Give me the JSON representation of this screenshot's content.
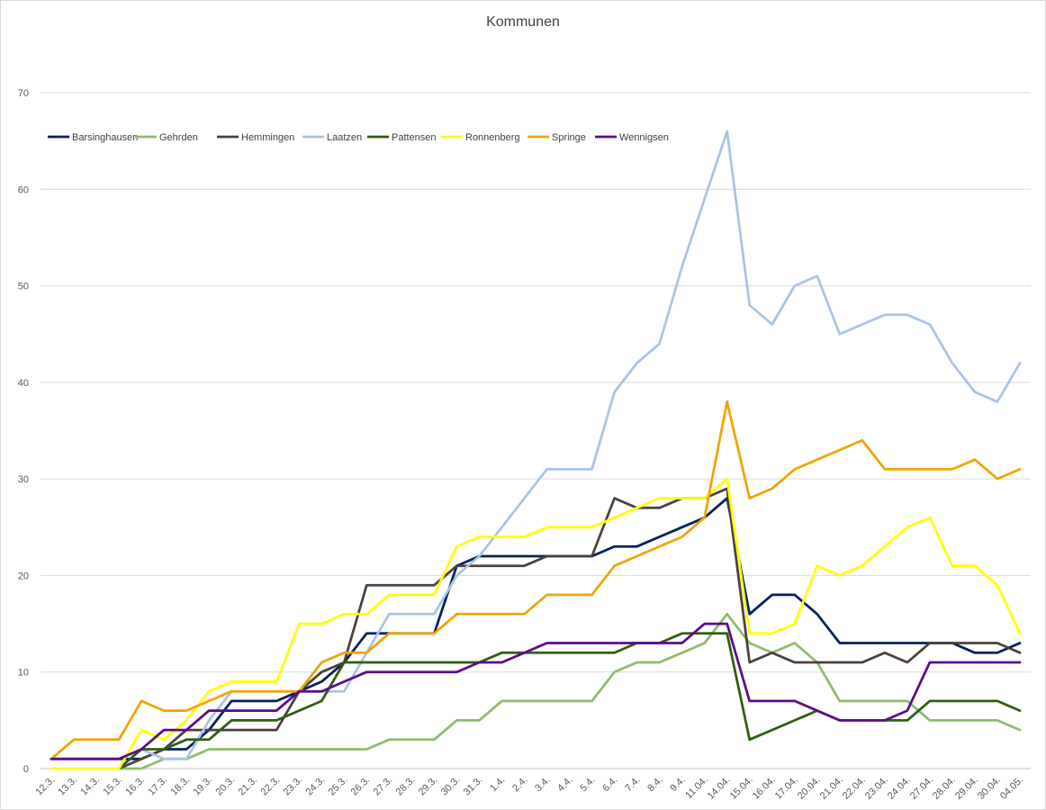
{
  "chart_data": {
    "type": "line",
    "title": "Kommunen",
    "xlabel": "",
    "ylabel": "",
    "ylim": [
      0,
      70
    ],
    "yticks": [
      0,
      10,
      20,
      30,
      40,
      50,
      60,
      70
    ],
    "grid": true,
    "legend_position": "top-left",
    "categories": [
      "12.3.",
      "13.3.",
      "14.3.",
      "15.3.",
      "16.3.",
      "17.3.",
      "18.3.",
      "19.3.",
      "20.3.",
      "21.3.",
      "22.3.",
      "23.3.",
      "24.3.",
      "25.3.",
      "26.3.",
      "27.3.",
      "28.3.",
      "29.3.",
      "30.3.",
      "31.3.",
      "1.4.",
      "2.4.",
      "3.4.",
      "4.4.",
      "5.4.",
      "6.4.",
      "7.4.",
      "8.4.",
      "9.4.",
      "11.04.",
      "14.04.",
      "15.04.",
      "16.04.",
      "17.04.",
      "20.04.",
      "21.04.",
      "22.04.",
      "23.04.",
      "24.04.",
      "27.04.",
      "28.04.",
      "29.04.",
      "30.04.",
      "04.05."
    ],
    "series": [
      {
        "name": "Barsinghausen",
        "color": "#002060",
        "values": [
          1,
          1,
          1,
          1,
          1,
          2,
          2,
          4,
          7,
          7,
          7,
          8,
          9,
          11,
          14,
          14,
          14,
          14,
          21,
          22,
          22,
          22,
          22,
          22,
          22,
          23,
          23,
          24,
          25,
          26,
          28,
          16,
          18,
          18,
          16,
          13,
          13,
          13,
          13,
          13,
          13,
          12,
          12,
          13
        ]
      },
      {
        "name": "Gehrden",
        "color": "#8fbc6a",
        "values": [
          null,
          null,
          null,
          0,
          0,
          1,
          1,
          2,
          2,
          2,
          2,
          2,
          2,
          2,
          2,
          3,
          3,
          3,
          5,
          5,
          7,
          7,
          7,
          7,
          7,
          10,
          11,
          11,
          12,
          13,
          16,
          13,
          12,
          13,
          11,
          7,
          7,
          7,
          7,
          5,
          5,
          5,
          5,
          4
        ]
      },
      {
        "name": "Hemmingen",
        "color": "#4d3f3f",
        "values": [
          null,
          null,
          null,
          0,
          1,
          2,
          4,
          4,
          4,
          4,
          4,
          8,
          10,
          11,
          19,
          19,
          19,
          19,
          21,
          21,
          21,
          21,
          22,
          22,
          22,
          28,
          27,
          27,
          28,
          28,
          29,
          11,
          12,
          11,
          11,
          11,
          11,
          12,
          11,
          13,
          13,
          13,
          13,
          12
        ]
      },
      {
        "name": "Laatzen",
        "color": "#a9c4e4",
        "values": [
          null,
          null,
          null,
          0,
          2,
          1,
          1,
          5,
          8,
          8,
          8,
          8,
          8,
          8,
          12,
          16,
          16,
          16,
          20,
          22,
          25,
          28,
          31,
          31,
          31,
          39,
          42,
          44,
          52,
          59,
          66,
          48,
          46,
          50,
          51,
          45,
          46,
          47,
          47,
          46,
          42,
          39,
          38,
          42
        ]
      },
      {
        "name": "Pattensen",
        "color": "#2e5e0e",
        "values": [
          null,
          null,
          null,
          0,
          2,
          2,
          3,
          3,
          5,
          5,
          5,
          6,
          7,
          11,
          11,
          11,
          11,
          11,
          11,
          11,
          12,
          12,
          12,
          12,
          12,
          12,
          13,
          13,
          14,
          14,
          14,
          3,
          4,
          5,
          6,
          5,
          5,
          5,
          5,
          7,
          7,
          7,
          7,
          6
        ]
      },
      {
        "name": "Ronnenberg",
        "color": "#ffff00",
        "values": [
          0,
          0,
          0,
          0,
          4,
          3,
          5,
          8,
          9,
          9,
          9,
          15,
          15,
          16,
          16,
          18,
          18,
          18,
          23,
          24,
          24,
          24,
          25,
          25,
          25,
          26,
          27,
          28,
          28,
          28,
          30,
          14,
          14,
          15,
          21,
          20,
          21,
          23,
          25,
          26,
          21,
          21,
          19,
          14
        ]
      },
      {
        "name": "Springe",
        "color": "#f0a500",
        "values": [
          1,
          3,
          3,
          3,
          7,
          6,
          6,
          7,
          8,
          8,
          8,
          8,
          11,
          12,
          12,
          14,
          14,
          14,
          16,
          16,
          16,
          16,
          18,
          18,
          18,
          21,
          22,
          23,
          24,
          26,
          38,
          28,
          29,
          31,
          32,
          33,
          34,
          31,
          31,
          31,
          31,
          32,
          30,
          31
        ]
      },
      {
        "name": "Wennigsen",
        "color": "#5b0a8c",
        "values": [
          1,
          1,
          1,
          1,
          2,
          4,
          4,
          6,
          6,
          6,
          6,
          8,
          8,
          9,
          10,
          10,
          10,
          10,
          10,
          11,
          11,
          12,
          13,
          13,
          13,
          13,
          13,
          13,
          13,
          15,
          15,
          7,
          7,
          7,
          6,
          5,
          5,
          5,
          6,
          11,
          11,
          11,
          11,
          11
        ]
      }
    ]
  }
}
